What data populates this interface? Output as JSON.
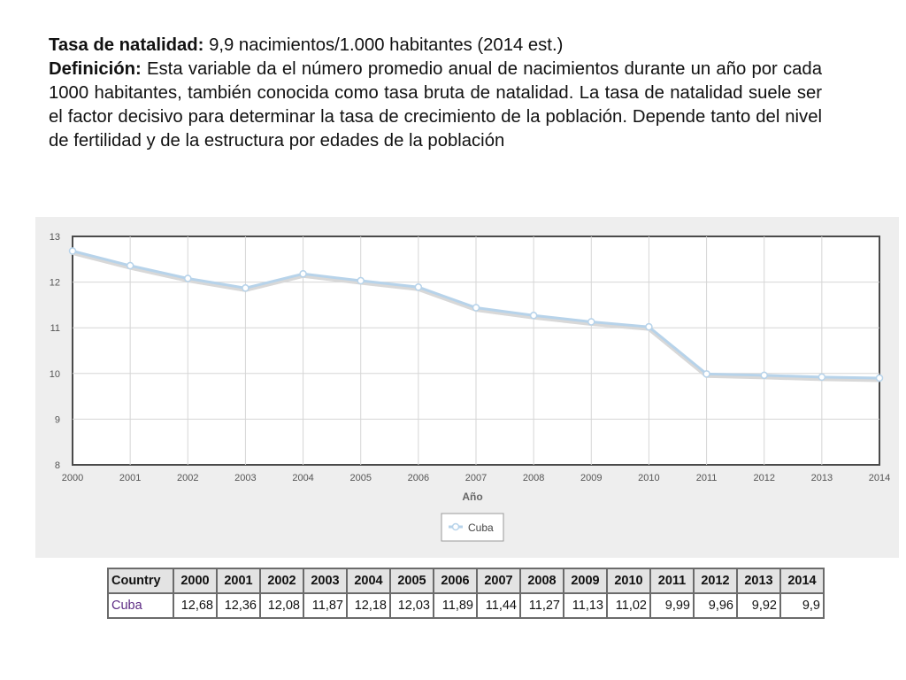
{
  "text": {
    "line1_label": "Tasa de natalidad:",
    "line1_value": " 9,9 nacimientos/1.000 habitantes (2014 est.)",
    "def_label": "Definición:",
    "def_text": " Esta variable da el número promedio anual de nacimientos durante un año por cada 1000 habitantes, también conocida como tasa bruta de natalidad. La tasa de natalidad suele ser el factor decisivo para determinar la tasa de crecimiento de la población. Depende tanto del nivel de fertilidad y de la estructura por edades de la población"
  },
  "chart_data": {
    "type": "line",
    "x": [
      "2000",
      "2001",
      "2002",
      "2003",
      "2004",
      "2005",
      "2006",
      "2007",
      "2008",
      "2009",
      "2010",
      "2011",
      "2012",
      "2013",
      "2014"
    ],
    "series": [
      {
        "name": "Cuba",
        "values": [
          12.68,
          12.36,
          12.08,
          11.87,
          12.18,
          12.03,
          11.89,
          11.44,
          11.27,
          11.13,
          11.02,
          9.99,
          9.96,
          9.92,
          9.9
        ]
      }
    ],
    "xlabel": "Año",
    "ylabel": "",
    "ylim": [
      8,
      13
    ],
    "yticks": [
      "8",
      "9",
      "10",
      "11",
      "12",
      "13"
    ],
    "grid": true,
    "legend": "bottom-center",
    "colors": {
      "line": "#b7d3ea",
      "marker_fill": "#ffffff",
      "panel": "#eeeeee",
      "plot": "#ffffff"
    }
  },
  "table": {
    "header_country": "Country",
    "years": [
      "2000",
      "2001",
      "2002",
      "2003",
      "2004",
      "2005",
      "2006",
      "2007",
      "2008",
      "2009",
      "2010",
      "2011",
      "2012",
      "2013",
      "2014"
    ],
    "row_country": "Cuba",
    "values": [
      "12,68",
      "12,36",
      "12,08",
      "11,87",
      "12,18",
      "12,03",
      "11,89",
      "11,44",
      "11,27",
      "11,13",
      "11,02",
      "9,99",
      "9,96",
      "9,92",
      "9,9"
    ]
  }
}
